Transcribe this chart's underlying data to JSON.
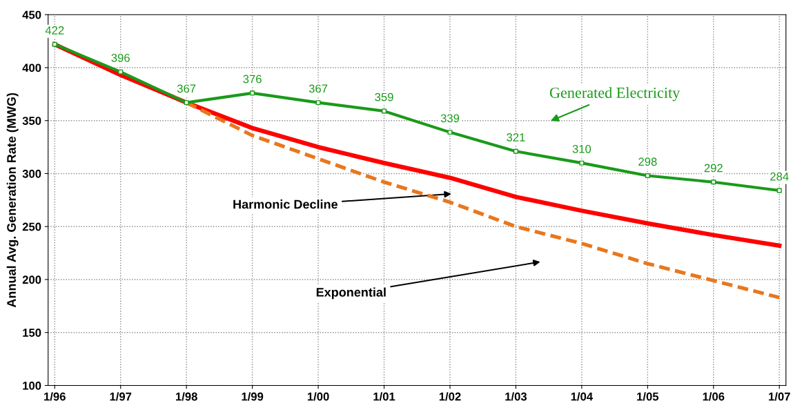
{
  "chart_data": {
    "type": "line",
    "ylabel": "Annual Avg. Generation Rate (MWG)",
    "categories": [
      "1/96",
      "1/97",
      "1/98",
      "1/99",
      "1/00",
      "1/01",
      "1/02",
      "1/03",
      "1/04",
      "1/05",
      "1/06",
      "1/07"
    ],
    "series": [
      {
        "color": "#ff0000",
        "values": [
          422,
          393,
          367,
          343,
          325,
          310,
          296,
          278,
          265,
          253,
          242,
          232
        ],
        "marker": "none",
        "line_style": "solid"
      },
      {
        "color": "#e8771e",
        "values": [
          null,
          null,
          367,
          336,
          314,
          292,
          273,
          250,
          234,
          215,
          199,
          183
        ],
        "marker": "none",
        "line_style": "dashed"
      },
      {
        "color": "#1a9a1a",
        "values": [
          422,
          396,
          367,
          376,
          367,
          359,
          339,
          321,
          310,
          298,
          292,
          284
        ],
        "marker": "square",
        "line_style": "solid",
        "value_labels": [
          "422",
          "396",
          "367",
          "376",
          "367",
          "359",
          "339",
          "321",
          "310",
          "298",
          "292",
          "284"
        ]
      }
    ],
    "ylim": [
      100,
      450
    ],
    "yticks": [
      100,
      150,
      200,
      250,
      300,
      350,
      400,
      450
    ],
    "grid": true,
    "legend": false,
    "annotations": [
      "Generated Electricity",
      "Harmonic Decline",
      "Exponential"
    ]
  }
}
